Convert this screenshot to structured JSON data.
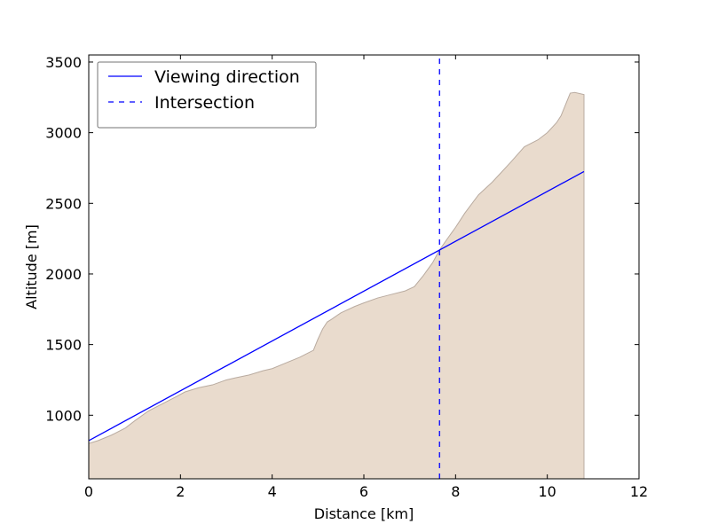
{
  "chart_data": {
    "type": "area",
    "xlabel": "Distance [km]",
    "ylabel": "Altitude [m]",
    "xlim": [
      0,
      12
    ],
    "ylim": [
      550,
      3550
    ],
    "xticks": [
      0,
      2,
      4,
      6,
      8,
      10,
      12
    ],
    "yticks": [
      1000,
      1500,
      2000,
      2500,
      3000,
      3500
    ],
    "grid": false,
    "legend_position": "top-left",
    "series": [
      {
        "name": "",
        "kind": "terrain",
        "fill_color": "#e9dbcd",
        "edge_color": "#b9aba0",
        "x": [
          0,
          0.2,
          0.5,
          0.8,
          1.0,
          1.3,
          1.6,
          1.9,
          2.1,
          2.4,
          2.7,
          3.0,
          3.2,
          3.5,
          3.8,
          4.0,
          4.3,
          4.6,
          4.9,
          5.0,
          5.1,
          5.2,
          5.3,
          5.5,
          5.8,
          6.0,
          6.3,
          6.6,
          6.9,
          7.1,
          7.3,
          7.5,
          7.65,
          7.8,
          8.0,
          8.2,
          8.5,
          8.8,
          9.0,
          9.2,
          9.5,
          9.8,
          10.0,
          10.2,
          10.3,
          10.4,
          10.5,
          10.6,
          10.8
        ],
        "y": [
          800,
          820,
          860,
          910,
          960,
          1030,
          1080,
          1130,
          1165,
          1195,
          1215,
          1250,
          1265,
          1285,
          1315,
          1330,
          1370,
          1410,
          1460,
          1540,
          1610,
          1660,
          1680,
          1725,
          1770,
          1795,
          1830,
          1855,
          1880,
          1910,
          1990,
          2080,
          2170,
          2240,
          2330,
          2430,
          2560,
          2650,
          2720,
          2790,
          2900,
          2950,
          3000,
          3070,
          3120,
          3200,
          3280,
          3285,
          3270
        ]
      },
      {
        "name": "Viewing direction",
        "kind": "line",
        "color": "#0000ff",
        "dash": "solid",
        "x": [
          0,
          10.8
        ],
        "y": [
          820,
          2725
        ]
      },
      {
        "name": "Intersection",
        "kind": "vline",
        "color": "#0000ff",
        "dash": "dashed",
        "x": [
          7.65,
          7.65
        ],
        "y": [
          550,
          3550
        ]
      }
    ]
  }
}
